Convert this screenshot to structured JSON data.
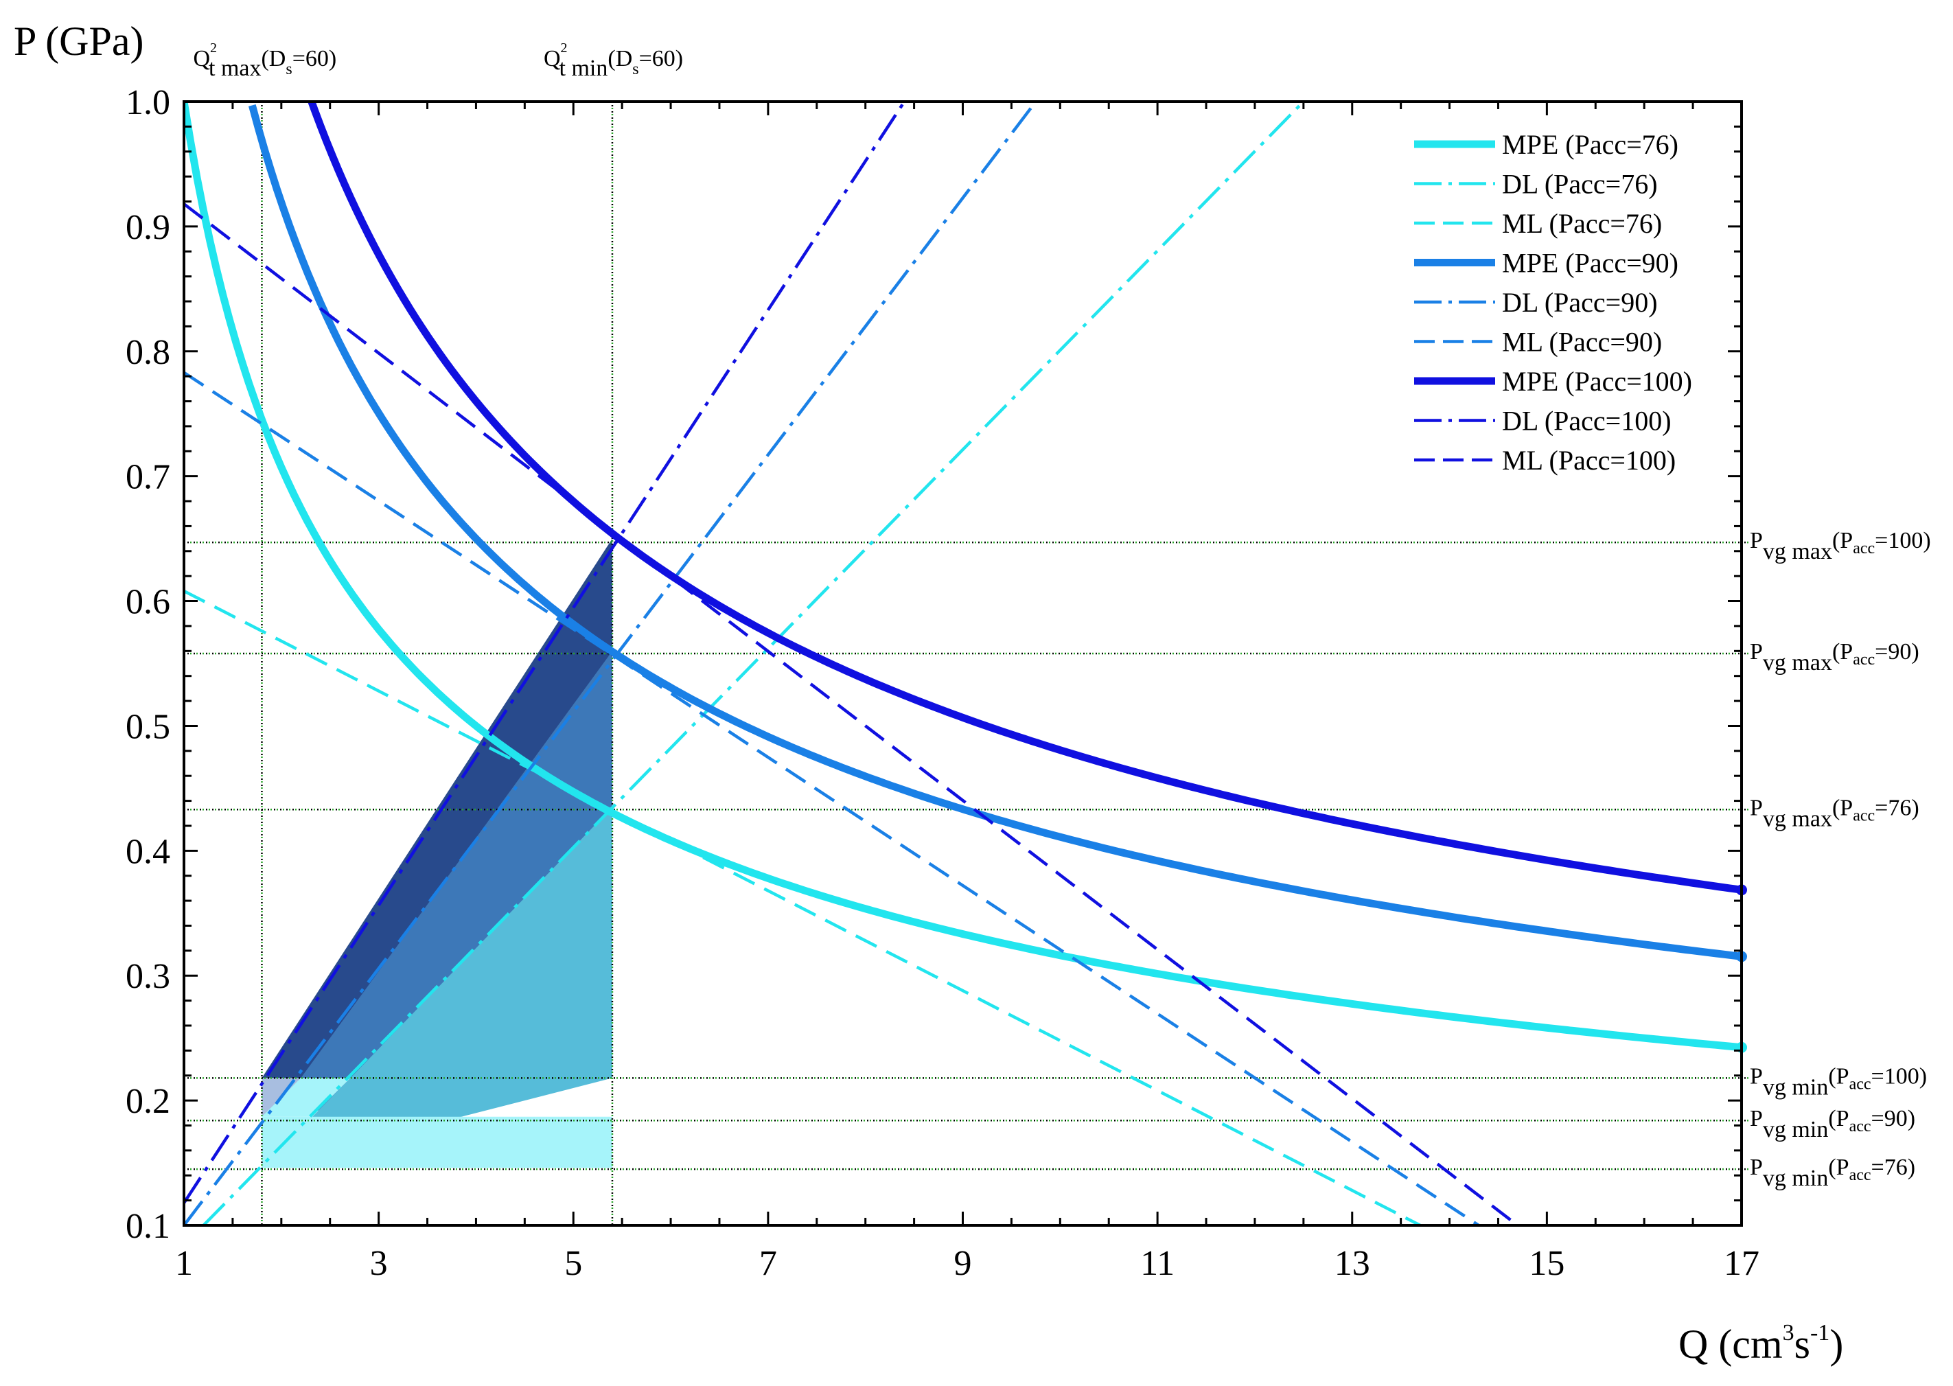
{
  "chart_data": {
    "type": "line",
    "title": "",
    "xlabel": "Q (cm3s-1)",
    "xlabel_parts": {
      "base": "Q (cm",
      "sup1": "3",
      "mid": "s",
      "sup2": "-1",
      "end": ")"
    },
    "ylabel": "P (GPa)",
    "xlim": [
      1,
      17
    ],
    "ylim": [
      0.1,
      1.0
    ],
    "x_ticks": [
      1,
      3,
      5,
      7,
      9,
      11,
      13,
      15,
      17
    ],
    "y_ticks": [
      0.1,
      0.2,
      0.3,
      0.4,
      0.5,
      0.6,
      0.7,
      0.8,
      0.9,
      1.0
    ],
    "grid": false,
    "legend_position": "top-right",
    "colors": {
      "pacc76": "#22e5ee",
      "pacc90": "#1a80e6",
      "pacc100": "#1010e0",
      "fill_dark": "#284a8c",
      "fill_mid": "#3d78b8",
      "fill_teal": "#56bcd9",
      "fill_pale": "#a6f4fa",
      "fill_lavender": "#a8bee0",
      "guide": "#2aa52a"
    },
    "series": [
      {
        "name": "MPE (Pacc=76)",
        "style": "solid",
        "color": "#22e5ee",
        "kind": "power",
        "a": 1.0,
        "b": -0.5,
        "xrange": [
          1,
          17
        ]
      },
      {
        "name": "DL (Pacc=76)",
        "style": "dashdot",
        "color": "#22e5ee",
        "kind": "linear",
        "points": [
          [
            1.2,
            0.1
          ],
          [
            12.5,
            1.0
          ]
        ]
      },
      {
        "name": "ML (Pacc=76)",
        "style": "dashed",
        "color": "#22e5ee",
        "kind": "linear",
        "points": [
          [
            1,
            0.608
          ],
          [
            13.7,
            0.1
          ]
        ]
      },
      {
        "name": "MPE (Pacc=90)",
        "style": "solid",
        "color": "#1a80e6",
        "kind": "power",
        "a": 1.3,
        "b": -0.5,
        "xrange": [
          1.7,
          17
        ]
      },
      {
        "name": "DL (Pacc=90)",
        "style": "dashdot",
        "color": "#1a80e6",
        "kind": "linear",
        "points": [
          [
            1,
            0.1
          ],
          [
            9.75,
            1.0
          ]
        ]
      },
      {
        "name": "ML (Pacc=90)",
        "style": "dashed",
        "color": "#1a80e6",
        "kind": "linear",
        "points": [
          [
            1,
            0.783
          ],
          [
            14.3,
            0.1
          ]
        ]
      },
      {
        "name": "MPE (Pacc=100)",
        "style": "solid",
        "color": "#1010e0",
        "kind": "power",
        "a": 1.52,
        "b": -0.5,
        "xrange": [
          2.28,
          17
        ]
      },
      {
        "name": "DL (Pacc=100)",
        "style": "dashdot",
        "color": "#1010e0",
        "kind": "linear",
        "points": [
          [
            1,
            0.118
          ],
          [
            8.4,
            1.0
          ]
        ]
      },
      {
        "name": "ML (Pacc=100)",
        "style": "dashed",
        "color": "#1010e0",
        "kind": "linear",
        "points": [
          [
            1,
            0.918
          ],
          [
            14.7,
            0.1
          ]
        ]
      }
    ],
    "fill_regions": [
      {
        "name": "Pacc=100 region",
        "color": "fill_dark",
        "points": [
          [
            1.8,
            0.218
          ],
          [
            5.4,
            0.65
          ],
          [
            5.4,
            0.218
          ]
        ]
      },
      {
        "name": "Pacc=90 region",
        "color": "fill_mid",
        "points": [
          [
            1.8,
            0.187
          ],
          [
            2.2,
            0.218
          ],
          [
            5.4,
            0.56
          ],
          [
            5.4,
            0.218
          ]
        ]
      },
      {
        "name": "Pacc=76 region",
        "color": "fill_teal",
        "points": [
          [
            1.8,
            0.146
          ],
          [
            2.71,
            0.218
          ],
          [
            5.4,
            0.435
          ],
          [
            5.4,
            0.218
          ]
        ]
      },
      {
        "name": "Pacc=90 lower band",
        "color": "fill_lavender",
        "points": [
          [
            1.8,
            0.187
          ],
          [
            1.8,
            0.218
          ],
          [
            2.2,
            0.218
          ]
        ]
      },
      {
        "name": "Pacc=90 lower band teal",
        "color": "fill_pale",
        "points": [
          [
            1.8,
            0.187
          ],
          [
            2.2,
            0.218
          ],
          [
            2.71,
            0.218
          ],
          [
            2.31,
            0.187
          ]
        ]
      },
      {
        "name": "Pacc=76 lower band",
        "color": "fill_pale",
        "points": [
          [
            1.8,
            0.146
          ],
          [
            1.8,
            0.187
          ],
          [
            2.31,
            0.187
          ],
          [
            5.4,
            0.187
          ],
          [
            5.4,
            0.146
          ]
        ]
      }
    ],
    "vertical_guides": [
      {
        "x": 1.8,
        "label_main": "Q",
        "label_sup": "2",
        "label_sub": "t max",
        "label_paren": "(D",
        "label_sub2": "s",
        "label_end": "=60)"
      },
      {
        "x": 5.4,
        "label_main": "Q",
        "label_sup": "2",
        "label_sub": "t min",
        "label_paren": "(D",
        "label_sub2": "s",
        "label_end": "=60)"
      }
    ],
    "horizontal_guides": [
      {
        "y": 0.647,
        "label_main": "P",
        "label_sub": "vg max",
        "label_paren": "(P",
        "label_sub2": "acc",
        "label_end": "=100)"
      },
      {
        "y": 0.558,
        "label_main": "P",
        "label_sub": "vg max",
        "label_paren": "(P",
        "label_sub2": "acc",
        "label_end": "=90)"
      },
      {
        "y": 0.433,
        "label_main": "P",
        "label_sub": "vg max",
        "label_paren": "(P",
        "label_sub2": "acc",
        "label_end": "=76)"
      },
      {
        "y": 0.218,
        "label_main": "P",
        "label_sub": "vg min",
        "label_paren": "(P",
        "label_sub2": "acc",
        "label_end": "=100)"
      },
      {
        "y": 0.184,
        "label_main": "P",
        "label_sub": "vg min",
        "label_paren": "(P",
        "label_sub2": "acc",
        "label_end": "=90)"
      },
      {
        "y": 0.145,
        "label_main": "P",
        "label_sub": "vg min",
        "label_paren": "(P",
        "label_sub2": "acc",
        "label_end": "=76)"
      }
    ]
  }
}
